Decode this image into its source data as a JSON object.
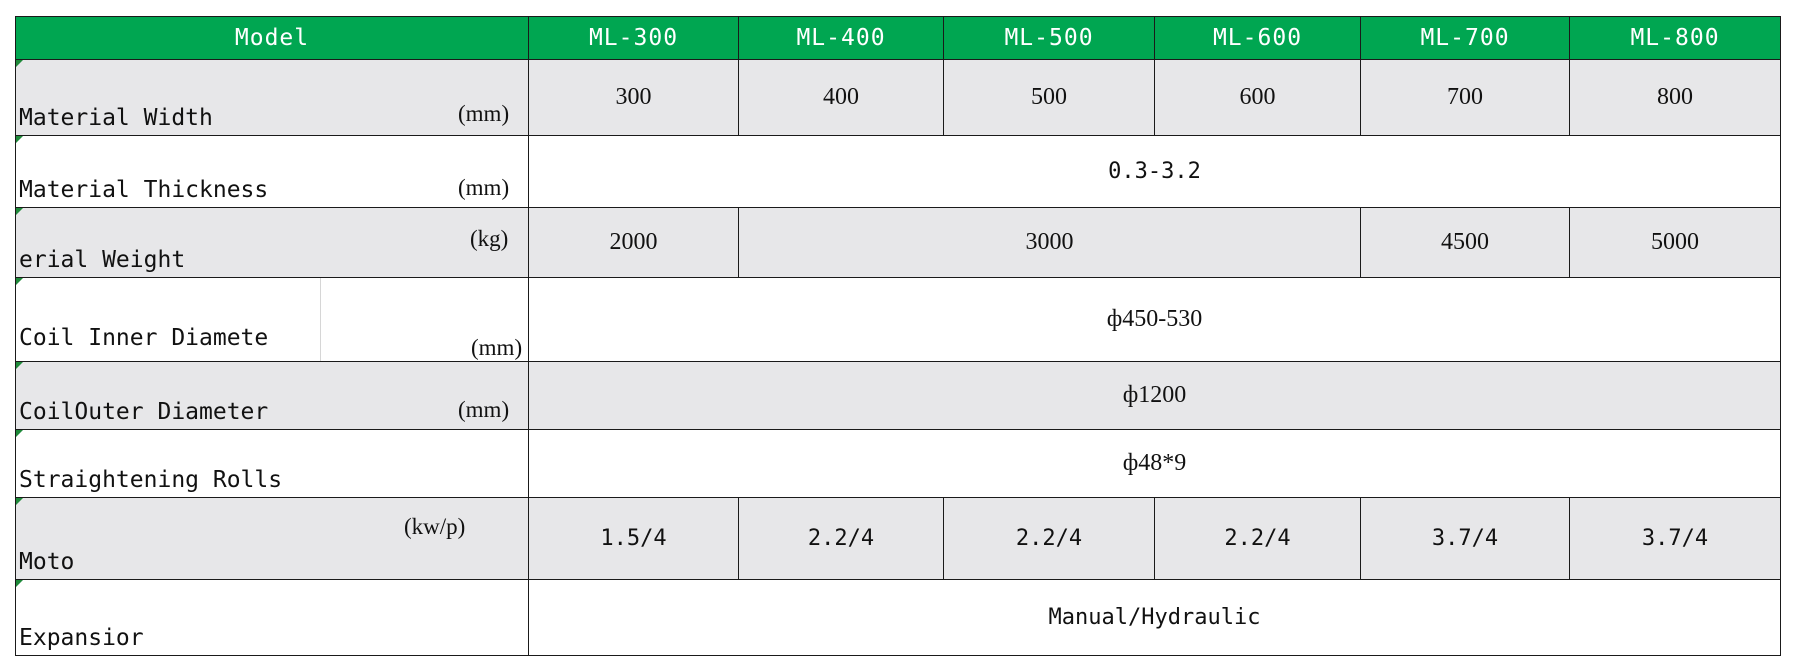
{
  "table": {
    "header": {
      "label": "Model",
      "models": [
        "ML-300",
        "ML-400",
        "ML-500",
        "ML-600",
        "ML-700",
        "ML-800"
      ]
    },
    "rows": [
      {
        "label": "Material Width",
        "unit": "(mm)",
        "values": [
          "300",
          "400",
          "500",
          "600",
          "700",
          "800"
        ]
      },
      {
        "label": "Material Thickness",
        "unit": "(mm)",
        "value": "0.3-3.2"
      },
      {
        "label": "erial Weight",
        "unit": "(kg)",
        "values": [
          "2000",
          "3000",
          "4500",
          "5000"
        ]
      },
      {
        "label": "Coil Inner Diamete",
        "unit": "(mm)",
        "value": "ф450-530"
      },
      {
        "label": "CoilOuter Diameter",
        "unit": "(mm)",
        "value": "ф1200"
      },
      {
        "label": "Straightening Rolls",
        "value": "ф48*9"
      },
      {
        "label": "Moto",
        "unit": "(kw/p)",
        "values": [
          "1.5/4",
          "2.2/4",
          "2.2/4",
          "2.2/4",
          "3.7/4",
          "3.7/4"
        ]
      },
      {
        "label": "Expansior",
        "value": "Manual/Hydraulic"
      }
    ]
  },
  "colors": {
    "header_bg": "#00a651",
    "header_text": "#ffffff",
    "row_gray": "#e7e7e9",
    "border": "#1a1a1a"
  }
}
